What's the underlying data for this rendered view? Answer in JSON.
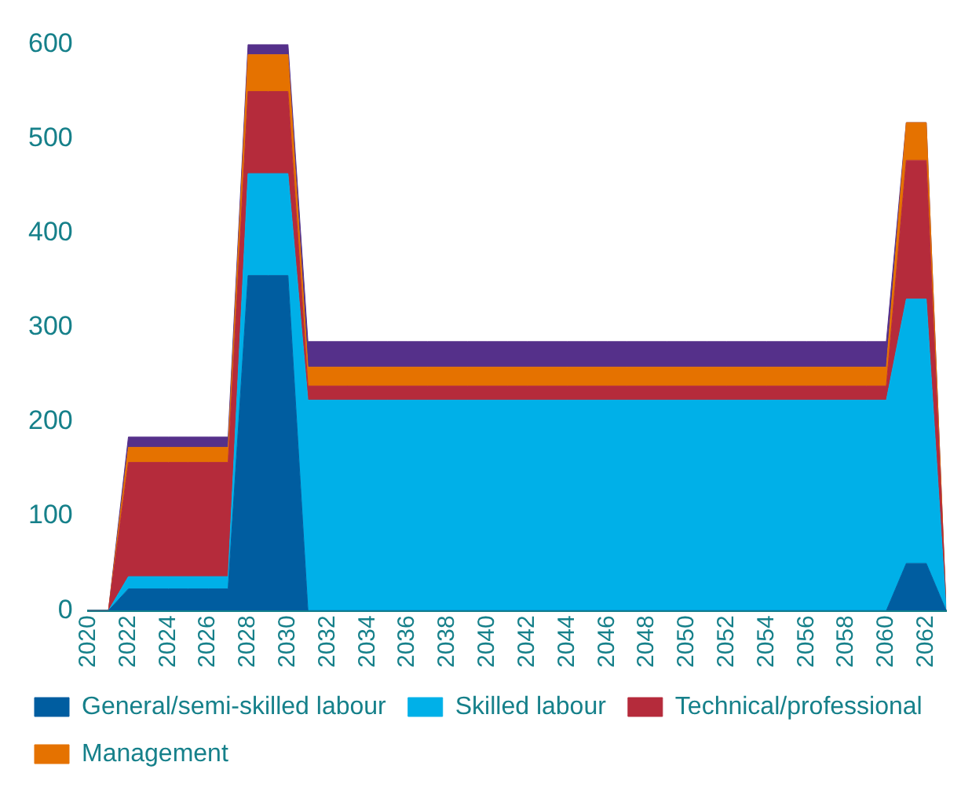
{
  "chart_data": {
    "type": "area",
    "stacked": true,
    "legend": "bottom",
    "grid": false,
    "marker": "none",
    "x": [
      2020,
      2021,
      2022,
      2023,
      2024,
      2025,
      2026,
      2027,
      2028,
      2029,
      2030,
      2031,
      2032,
      2033,
      2034,
      2035,
      2036,
      2037,
      2038,
      2039,
      2040,
      2041,
      2042,
      2043,
      2044,
      2045,
      2046,
      2047,
      2048,
      2049,
      2050,
      2051,
      2052,
      2053,
      2054,
      2055,
      2056,
      2057,
      2058,
      2059,
      2060,
      2061,
      2062,
      2063
    ],
    "xlim": [
      2020,
      2063
    ],
    "xticks": [
      2020,
      2022,
      2024,
      2026,
      2028,
      2030,
      2032,
      2034,
      2036,
      2038,
      2040,
      2042,
      2044,
      2046,
      2048,
      2050,
      2052,
      2054,
      2056,
      2058,
      2060,
      2062
    ],
    "ylim": [
      0,
      600
    ],
    "yticks": [
      0,
      100,
      200,
      300,
      400,
      500,
      600
    ],
    "series": [
      {
        "name": "General/semi-skilled labour",
        "color": "#005da0",
        "values": [
          0,
          0,
          23,
          23,
          23,
          23,
          23,
          23,
          355,
          355,
          355,
          0,
          0,
          0,
          0,
          0,
          0,
          0,
          0,
          0,
          0,
          0,
          0,
          0,
          0,
          0,
          0,
          0,
          0,
          0,
          0,
          0,
          0,
          0,
          0,
          0,
          0,
          0,
          0,
          0,
          0,
          50,
          50,
          0
        ]
      },
      {
        "name": "Skilled labour",
        "color": "#00b0e8",
        "values": [
          0,
          0,
          13,
          13,
          13,
          13,
          13,
          13,
          108,
          108,
          108,
          223,
          223,
          223,
          223,
          223,
          223,
          223,
          223,
          223,
          223,
          223,
          223,
          223,
          223,
          223,
          223,
          223,
          223,
          223,
          223,
          223,
          223,
          223,
          223,
          223,
          223,
          223,
          223,
          223,
          223,
          280,
          280,
          0
        ]
      },
      {
        "name": "Technical/professional",
        "color": "#b52b3b",
        "values": [
          0,
          0,
          121,
          121,
          121,
          121,
          121,
          121,
          87,
          87,
          87,
          15,
          15,
          15,
          15,
          15,
          15,
          15,
          15,
          15,
          15,
          15,
          15,
          15,
          15,
          15,
          15,
          15,
          15,
          15,
          15,
          15,
          15,
          15,
          15,
          15,
          15,
          15,
          15,
          15,
          15,
          147,
          147,
          0
        ]
      },
      {
        "name": "Management",
        "color": "#e57200",
        "values": [
          0,
          0,
          16,
          16,
          16,
          16,
          16,
          16,
          39,
          39,
          39,
          20,
          20,
          20,
          20,
          20,
          20,
          20,
          20,
          20,
          20,
          20,
          20,
          20,
          20,
          20,
          20,
          20,
          20,
          20,
          20,
          20,
          20,
          20,
          20,
          20,
          20,
          20,
          20,
          20,
          20,
          40,
          40,
          0
        ]
      },
      {
        "color": "#55308a",
        "values": [
          0,
          0,
          11,
          11,
          11,
          11,
          11,
          11,
          11,
          11,
          11,
          27,
          27,
          27,
          27,
          27,
          27,
          27,
          27,
          27,
          27,
          27,
          27,
          27,
          27,
          27,
          27,
          27,
          27,
          27,
          27,
          27,
          27,
          27,
          27,
          27,
          27,
          27,
          27,
          27,
          27,
          0,
          0,
          0
        ]
      }
    ]
  }
}
